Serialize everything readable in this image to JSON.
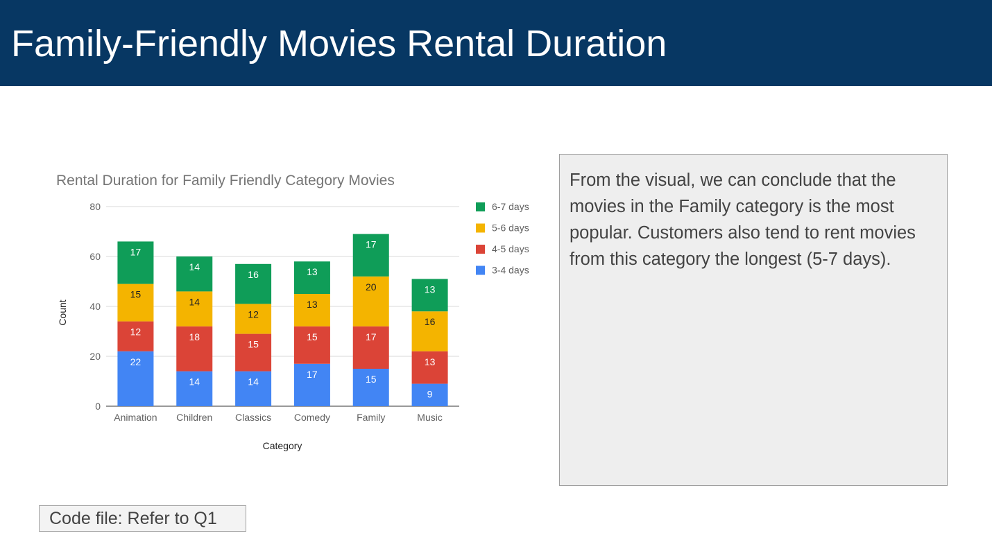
{
  "slide": {
    "title": "Family-Friendly Movies Rental Duration",
    "note": "From the visual, we can conclude that the movies in the Family category is the most popular. Customers also tend to rent movies from this category the longest (5-7 days).",
    "code_ref": "Code file: Refer to Q1"
  },
  "colors": {
    "header_bg": "#073763",
    "gridline": "#d9d9d9",
    "axis_text": "#5f5f5f"
  },
  "chart_data": {
    "type": "bar",
    "stacked": true,
    "title": "Rental Duration for Family Friendly Category Movies",
    "xlabel": "Category",
    "ylabel": "Count",
    "ylim": [
      0,
      80
    ],
    "yticks": [
      0,
      20,
      40,
      60,
      80
    ],
    "grid": true,
    "legend_position": "right",
    "categories": [
      "Animation",
      "Children",
      "Classics",
      "Comedy",
      "Family",
      "Music"
    ],
    "series": [
      {
        "name": "3-4 days",
        "color": "#4285f4",
        "label_color": "#ffffff",
        "values": [
          22,
          14,
          14,
          17,
          15,
          9
        ]
      },
      {
        "name": "4-5 days",
        "color": "#db4437",
        "label_color": "#ffffff",
        "values": [
          12,
          18,
          15,
          15,
          17,
          13
        ]
      },
      {
        "name": "5-6 days",
        "color": "#f4b400",
        "label_color": "#222222",
        "values": [
          15,
          14,
          12,
          13,
          20,
          16
        ]
      },
      {
        "name": "6-7 days",
        "color": "#0f9d58",
        "label_color": "#ffffff",
        "values": [
          17,
          14,
          16,
          13,
          17,
          13
        ]
      }
    ]
  }
}
